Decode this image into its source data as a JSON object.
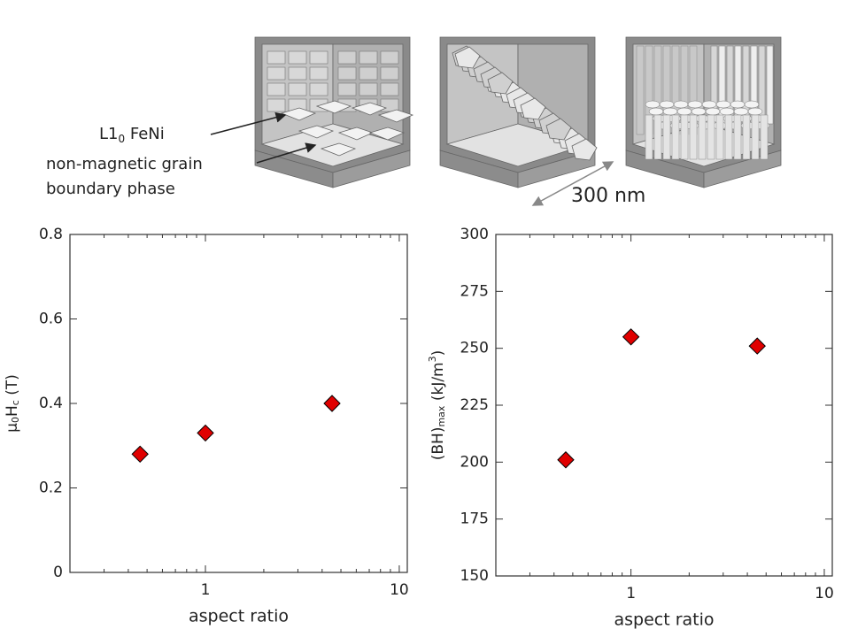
{
  "figure": {
    "phase_label": [
      "L1",
      {
        "sub": "0"
      },
      " FeNi"
    ],
    "boundary_label": [
      "non-magnetic grain",
      "boundary phase"
    ],
    "scale_label": "300 nm"
  },
  "chart_data": [
    {
      "type": "scatter",
      "xlabel": "aspect ratio",
      "ylabel": [
        "μ",
        {
          "sub": "0"
        },
        "H",
        {
          "sub": "c"
        },
        " (T)"
      ],
      "x": [
        0.46,
        1.0,
        4.5
      ],
      "series": [
        {
          "color": "#e00000",
          "values": [
            0.28,
            0.33,
            0.4
          ]
        }
      ],
      "xscale": "log",
      "xlim": [
        0.2,
        11
      ],
      "xticks": [
        1,
        10
      ],
      "xminorticks": [
        0.2,
        0.3,
        0.4,
        0.5,
        0.6,
        0.7,
        0.8,
        0.9,
        2,
        3,
        4,
        5,
        6,
        7,
        8,
        9
      ],
      "ylim": [
        0,
        0.8
      ],
      "yticks": [
        0,
        0.2,
        0.4,
        0.6,
        0.8
      ],
      "grid": false
    },
    {
      "type": "scatter",
      "xlabel": "aspect ratio",
      "ylabel": [
        "(BH)",
        {
          "sub": "max"
        },
        " (kJ/m",
        {
          "sup": "3"
        },
        ")"
      ],
      "x": [
        0.46,
        1.0,
        4.5
      ],
      "series": [
        {
          "color": "#e00000",
          "values": [
            201,
            255,
            251
          ]
        }
      ],
      "xscale": "log",
      "xlim": [
        0.2,
        11
      ],
      "xticks": [
        1,
        10
      ],
      "xminorticks": [
        0.2,
        0.3,
        0.4,
        0.5,
        0.6,
        0.7,
        0.8,
        0.9,
        2,
        3,
        4,
        5,
        6,
        7,
        8,
        9
      ],
      "ylim": [
        150,
        300
      ],
      "yticks": [
        150,
        175,
        200,
        225,
        250,
        275,
        300
      ],
      "grid": false
    }
  ]
}
